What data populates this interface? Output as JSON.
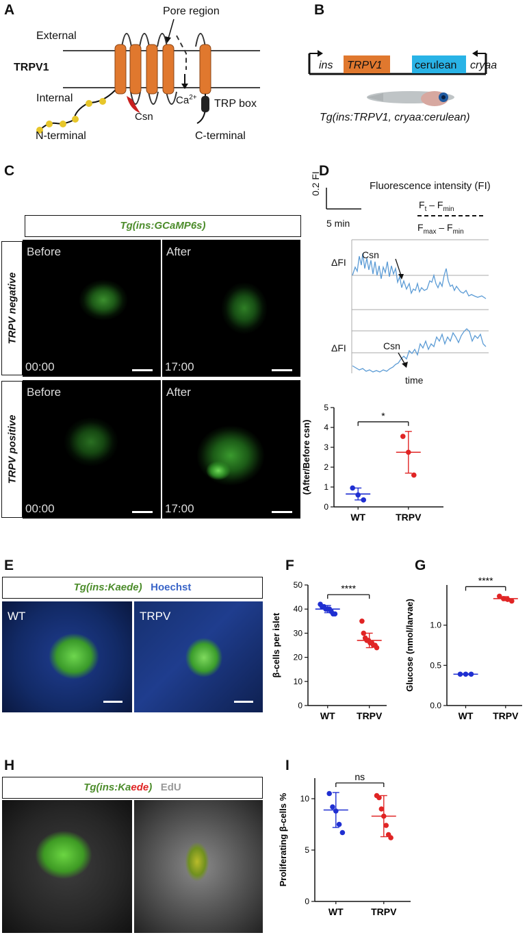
{
  "panels": {
    "A": "A",
    "B": "B",
    "C": "C",
    "D": "D",
    "E": "E",
    "F": "F",
    "G": "G",
    "H": "H",
    "I": "I"
  },
  "panelA": {
    "external": "External",
    "internal": "Internal",
    "trpv1": "TRPV1",
    "pore": "Pore region",
    "ca": "Ca",
    "ca_sup": "2+",
    "csn": "Csn",
    "trp_box": "TRP box",
    "n_term": "N-terminal",
    "c_term": "C-terminal"
  },
  "panelB": {
    "ins": "ins",
    "trpv1": "TRPV1",
    "cerulean": "cerulean",
    "cryaa": "cryaa",
    "caption": "Tg(ins:TRPV1, cryaa:cerulean)",
    "colors": {
      "trpv1": "#e0782e",
      "cerulean": "#29b3e6"
    }
  },
  "panelC": {
    "header": "Tg(ins:GCaMP6s)",
    "row1": "TRPV negative",
    "row2": "TRPV positive",
    "before": "Before",
    "after": "After",
    "t0": "00:00",
    "t1": "17:00"
  },
  "panelD": {
    "scale_y": "0.2 FI",
    "scale_x": "5 min",
    "fi_title": "Fluorescence intensity (FI)",
    "num_a": "F",
    "num_a_sub": "t",
    "num_minus": "– F",
    "num_b_sub": "min",
    "den_a": "F",
    "den_a_sub": "max",
    "den_minus": "– F",
    "den_b_sub": "min",
    "dfi": "ΔFI",
    "csn": "Csn",
    "time": "time"
  },
  "panelE": {
    "kaede": "Tg(ins:Kaede)",
    "hoechst": "Hoechst",
    "wt": "WT",
    "trpv": "TRPV"
  },
  "panelH": {
    "kaede_pre": "Tg(ins:Ka",
    "kaede_red": "ede",
    ")": ")",
    "edu": "EdU"
  },
  "colors": {
    "wt": "#1f2fd1",
    "trpv": "#e02424",
    "green_label": "#4c8c2b",
    "hoechst": "#3a65c8"
  },
  "chart_data": [
    {
      "id": "D",
      "type": "scatter",
      "ylabel": "Δ Fluorescence (After/Before csn)",
      "categories": [
        "WT",
        "TRPV"
      ],
      "ylim": [
        0,
        5
      ],
      "yticks": [
        0,
        1,
        2,
        3,
        4,
        5
      ],
      "significance": "*",
      "series": [
        {
          "name": "WT",
          "points": [
            0.95,
            0.6,
            0.35
          ],
          "mean": 0.65,
          "sd": 0.3
        },
        {
          "name": "TRPV",
          "points": [
            3.55,
            2.75,
            1.6
          ],
          "mean": 2.75,
          "sd": 1.05
        }
      ]
    },
    {
      "id": "F",
      "type": "scatter",
      "ylabel": "β-cells per islet",
      "categories": [
        "WT",
        "TRPV"
      ],
      "ylim": [
        0,
        50
      ],
      "yticks": [
        0,
        10,
        20,
        30,
        40,
        50
      ],
      "significance": "****",
      "series": [
        {
          "name": "WT",
          "points": [
            42,
            41,
            41,
            40,
            40,
            40,
            39,
            38,
            38
          ],
          "mean": 40,
          "sd": 1.5
        },
        {
          "name": "TRPV",
          "points": [
            35,
            30,
            28,
            27,
            27,
            26,
            26,
            25,
            25,
            24
          ],
          "mean": 27,
          "sd": 3
        }
      ]
    },
    {
      "id": "G",
      "type": "scatter",
      "ylabel": "Glucose (nmol/larvae)",
      "categories": [
        "WT",
        "TRPV"
      ],
      "ylim": [
        0,
        1.5
      ],
      "yticks": [
        0.0,
        0.5,
        1.0
      ],
      "significance": "****",
      "series": [
        {
          "name": "WT",
          "points": [
            0.39,
            0.39,
            0.39
          ],
          "mean": 0.39,
          "sd": 0.005
        },
        {
          "name": "TRPV",
          "points": [
            1.36,
            1.33,
            1.32,
            1.3
          ],
          "mean": 1.33,
          "sd": 0.025
        }
      ]
    },
    {
      "id": "I",
      "type": "scatter",
      "ylabel": "Proliferating β-cells %",
      "categories": [
        "WT",
        "TRPV"
      ],
      "ylim": [
        0,
        12
      ],
      "yticks": [
        0,
        5,
        10
      ],
      "significance": "ns",
      "series": [
        {
          "name": "WT",
          "points": [
            10.5,
            9.2,
            8.8,
            7.5,
            6.7
          ],
          "mean": 8.9,
          "sd": 1.7
        },
        {
          "name": "TRPV",
          "points": [
            10.3,
            10.1,
            9.0,
            8.3,
            7.4,
            6.5,
            6.2
          ],
          "mean": 8.3,
          "sd": 2.0
        }
      ]
    }
  ]
}
